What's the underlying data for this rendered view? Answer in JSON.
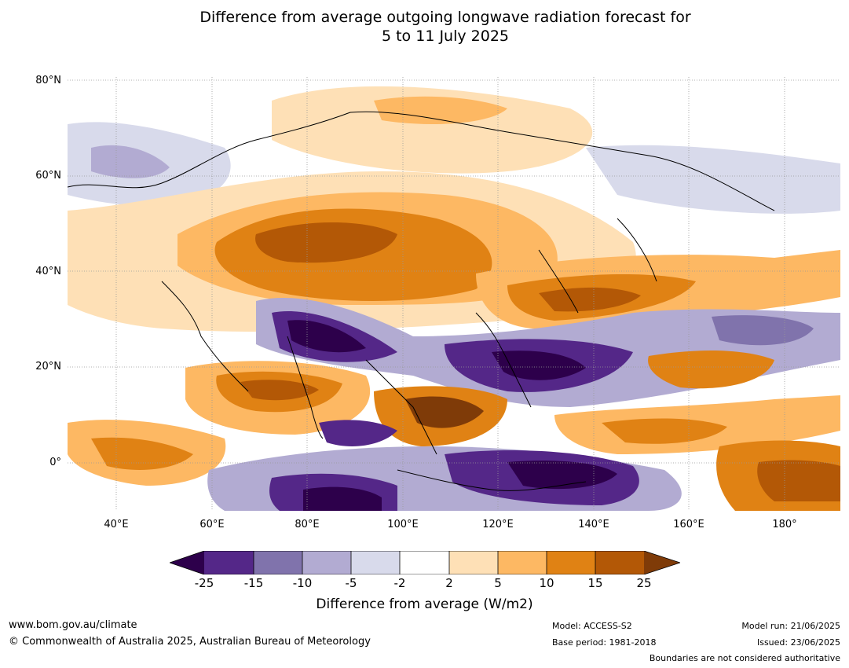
{
  "title": {
    "line1": "Difference from average outgoing longwave radiation forecast for",
    "line2": "5 to 11 July 2025"
  },
  "map": {
    "lat_labels": [
      "80°N",
      "60°N",
      "40°N",
      "20°N",
      "0°"
    ],
    "lon_labels": [
      "40°E",
      "60°E",
      "80°E",
      "100°E",
      "120°E",
      "140°E",
      "160°E",
      "180°"
    ],
    "colors": {
      "purple_darkest": "#2d004b",
      "purple_dark": "#542788",
      "purple_mid": "#8073ac",
      "purple_light": "#b2abd2",
      "purple_pale": "#d8daeb",
      "neutral": "#ffffff",
      "orange_pale": "#fee0b6",
      "orange_light": "#fdb863",
      "orange_mid": "#e08214",
      "orange_dark": "#b35806",
      "orange_darkest": "#7f3b08"
    }
  },
  "colorbar": {
    "ticks": [
      "-25",
      "-15",
      "-10",
      "-5",
      "-2",
      "2",
      "5",
      "10",
      "15",
      "25"
    ],
    "label": "Difference from average (W/m2)"
  },
  "footer": {
    "url": "www.bom.gov.au/climate",
    "copyright": "© Commonwealth of Australia 2025, Australian Bureau of Meteorology",
    "model": "Model: ACCESS-S2",
    "base_period": "Base period: 1981-2018",
    "model_run": "Model run: 21/06/2025",
    "issued": "Issued: 23/06/2025",
    "disclaimer": "Boundaries are not considered authoritative"
  }
}
